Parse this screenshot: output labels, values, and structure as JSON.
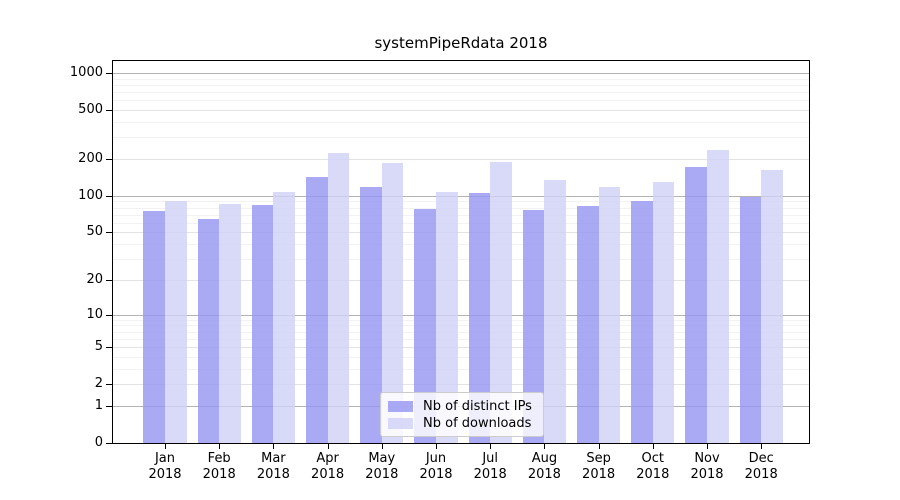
{
  "figure": {
    "background": "#ffffff"
  },
  "chart_data": {
    "type": "bar",
    "title": "systemPipeRdata 2018",
    "categories": [
      "Jan 2018",
      "Feb 2018",
      "Mar 2018",
      "Apr 2018",
      "May 2018",
      "Jun 2018",
      "Jul 2018",
      "Aug 2018",
      "Sep 2018",
      "Oct 2018",
      "Nov 2018",
      "Dec 2018"
    ],
    "x_tick_months": [
      "Jan",
      "Feb",
      "Mar",
      "Apr",
      "May",
      "Jun",
      "Jul",
      "Aug",
      "Sep",
      "Oct",
      "Nov",
      "Dec"
    ],
    "x_tick_year": "2018",
    "series": [
      {
        "name": "Nb of distinct IPs",
        "color": "#9393f1",
        "fill_alpha": 0.8,
        "values": [
          75,
          65,
          84,
          143,
          118,
          78,
          105,
          77,
          83,
          91,
          172,
          97
        ]
      },
      {
        "name": "Nb of downloads",
        "color": "#d0d0f6",
        "fill_alpha": 0.8,
        "values": [
          90,
          85,
          108,
          224,
          186,
          108,
          190,
          135,
          119,
          130,
          238,
          164
        ]
      }
    ],
    "xlabel": "",
    "ylabel": "",
    "yscale": "log1p",
    "ylim": [
      0,
      1250
    ],
    "yticks": [
      1000,
      500,
      200,
      100,
      50,
      20,
      10,
      5,
      2,
      1,
      0
    ],
    "yticks_emphasis": [
      1,
      10,
      100,
      1000
    ],
    "yticks_minor": [
      3,
      4,
      6,
      7,
      8,
      9,
      30,
      40,
      60,
      70,
      80,
      90,
      300,
      400,
      600,
      700,
      800,
      900
    ],
    "grid": {
      "orientation": "horizontal",
      "major_color": "#b3b3b3",
      "mid_color": "#e3e3e3",
      "minor_color": "#f2f2f2"
    },
    "legend": {
      "position": "lower-center"
    }
  }
}
